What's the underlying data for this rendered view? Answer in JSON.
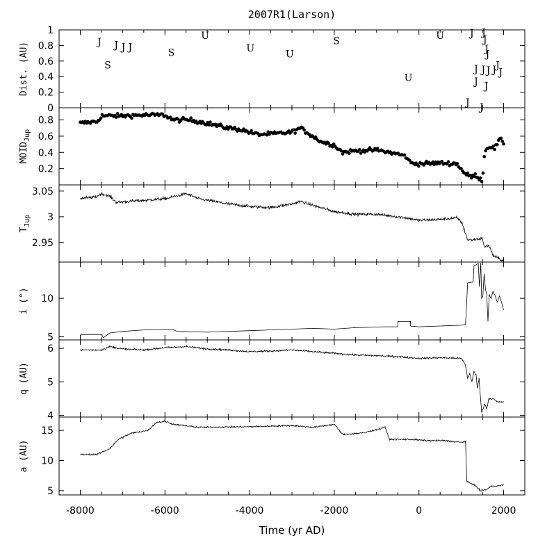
{
  "chart_data": {
    "type": "line",
    "title": "2007R1(Larson)",
    "xlabel": "Time (yr AD)",
    "xlim": [
      -8500,
      2500
    ],
    "x_ticks": [
      -8000,
      -6000,
      -4000,
      -2000,
      0,
      2000
    ],
    "x_tick_labels": [
      "-8000",
      "-6000",
      "-4000",
      "-2000",
      "0",
      "2000"
    ],
    "panels": [
      {
        "id": "dist",
        "type": "scatter-text",
        "ylabel": "Dist. (AU)",
        "ylim": [
          0,
          1
        ],
        "yticks": [
          0,
          0.2,
          0.4,
          0.6,
          0.8,
          1
        ],
        "ytick_labels": [
          "0",
          "0.2",
          "0.4",
          "0.6",
          "0.8",
          "1"
        ],
        "encounters": [
          {
            "x": -7550,
            "y": 0.85,
            "label": "J"
          },
          {
            "x": -7350,
            "y": 0.55,
            "label": "S"
          },
          {
            "x": -7150,
            "y": 0.81,
            "label": "J"
          },
          {
            "x": -6980,
            "y": 0.78,
            "label": "J"
          },
          {
            "x": -6820,
            "y": 0.78,
            "label": "J"
          },
          {
            "x": -5850,
            "y": 0.71,
            "label": "S"
          },
          {
            "x": -5050,
            "y": 0.93,
            "label": "U"
          },
          {
            "x": -3980,
            "y": 0.77,
            "label": "U"
          },
          {
            "x": -3050,
            "y": 0.69,
            "label": "U"
          },
          {
            "x": -1950,
            "y": 0.86,
            "label": "S"
          },
          {
            "x": -250,
            "y": 0.39,
            "label": "U"
          },
          {
            "x": 500,
            "y": 0.93,
            "label": "U"
          },
          {
            "x": 1250,
            "y": 0.96,
            "label": "J"
          },
          {
            "x": 1150,
            "y": 0.07,
            "label": "J"
          },
          {
            "x": 1350,
            "y": 0.5,
            "label": "J"
          },
          {
            "x": 1350,
            "y": 0.34,
            "label": "J"
          },
          {
            "x": 1520,
            "y": 0.49,
            "label": "J"
          },
          {
            "x": 1530,
            "y": 0.97,
            "label": "J"
          },
          {
            "x": 1560,
            "y": 0.88,
            "label": "J"
          },
          {
            "x": 1600,
            "y": 0.76,
            "label": "J"
          },
          {
            "x": 1620,
            "y": 0.69,
            "label": "J"
          },
          {
            "x": 1640,
            "y": 0.48,
            "label": "J"
          },
          {
            "x": 1590,
            "y": 0.28,
            "label": "J"
          },
          {
            "x": 1480,
            "y": 0.01,
            "label": "J"
          },
          {
            "x": 1780,
            "y": 0.49,
            "label": "J"
          },
          {
            "x": 1860,
            "y": 0.55,
            "label": "J"
          },
          {
            "x": 1930,
            "y": 0.46,
            "label": "J"
          }
        ]
      },
      {
        "id": "moid",
        "type": "scatter",
        "ylabel": "MOID",
        "ylabel_sub": "Jup",
        "ylim": [
          0,
          0.95
        ],
        "yticks": [
          0.2,
          0.4,
          0.6,
          0.8
        ],
        "ytick_labels": [
          "0.2",
          "0.4",
          "0.6",
          "0.8"
        ],
        "trend": [
          [
            -8000,
            0.76
          ],
          [
            -7600,
            0.78
          ],
          [
            -7500,
            0.85
          ],
          [
            -7000,
            0.85
          ],
          [
            -6500,
            0.86
          ],
          [
            -6000,
            0.86
          ],
          [
            -5800,
            0.8
          ],
          [
            -5400,
            0.8
          ],
          [
            -5000,
            0.76
          ],
          [
            -4600,
            0.71
          ],
          [
            -4200,
            0.68
          ],
          [
            -3800,
            0.62
          ],
          [
            -3400,
            0.63
          ],
          [
            -3000,
            0.65
          ],
          [
            -2800,
            0.7
          ],
          [
            -2600,
            0.63
          ],
          [
            -2300,
            0.53
          ],
          [
            -2000,
            0.49
          ],
          [
            -1800,
            0.4
          ],
          [
            -1500,
            0.42
          ],
          [
            -1000,
            0.43
          ],
          [
            -500,
            0.38
          ],
          [
            -300,
            0.35
          ],
          [
            -200,
            0.27
          ],
          [
            0,
            0.26
          ],
          [
            500,
            0.27
          ],
          [
            900,
            0.26
          ],
          [
            1100,
            0.13
          ],
          [
            1250,
            0.1
          ],
          [
            1350,
            0.12
          ],
          [
            1450,
            0.07
          ],
          [
            1500,
            0.06
          ],
          [
            1550,
            0.4
          ],
          [
            1650,
            0.48
          ],
          [
            1800,
            0.45
          ],
          [
            1900,
            0.56
          ],
          [
            2000,
            0.52
          ]
        ],
        "jitter": 0.025,
        "count": 330
      },
      {
        "id": "tjup",
        "type": "line",
        "ylabel": "T",
        "ylabel_sub": "Jup",
        "ylim": [
          2.912,
          3.062
        ],
        "yticks": [
          2.95,
          3.0,
          3.05
        ],
        "ytick_labels": [
          "2.95",
          "3",
          "3.05"
        ],
        "trend": [
          [
            -8000,
            3.036
          ],
          [
            -7650,
            3.038
          ],
          [
            -7500,
            3.045
          ],
          [
            -7300,
            3.04
          ],
          [
            -7150,
            3.028
          ],
          [
            -6500,
            3.032
          ],
          [
            -6000,
            3.035
          ],
          [
            -5500,
            3.045
          ],
          [
            -5200,
            3.035
          ],
          [
            -4500,
            3.025
          ],
          [
            -4000,
            3.02
          ],
          [
            -3500,
            3.018
          ],
          [
            -3000,
            3.025
          ],
          [
            -2800,
            3.03
          ],
          [
            -2500,
            3.022
          ],
          [
            -2000,
            3.01
          ],
          [
            -1500,
            3.005
          ],
          [
            -1000,
            3.005
          ],
          [
            -500,
            3.0
          ],
          [
            -300,
            2.998
          ],
          [
            0,
            2.993
          ],
          [
            500,
            2.995
          ],
          [
            900,
            2.998
          ],
          [
            1000,
            2.99
          ],
          [
            1050,
            2.98
          ],
          [
            1150,
            2.955
          ],
          [
            1250,
            2.955
          ],
          [
            1500,
            2.958
          ],
          [
            1550,
            2.94
          ],
          [
            1650,
            2.945
          ],
          [
            1750,
            2.925
          ],
          [
            1900,
            2.918
          ],
          [
            2000,
            2.915
          ]
        ],
        "noise": 0.003
      },
      {
        "id": "incl",
        "type": "line",
        "ylabel": "i (°)",
        "ylim": [
          4.6,
          14.7
        ],
        "yticks": [
          5,
          10
        ],
        "ytick_labels": [
          "5",
          "10"
        ],
        "points": [
          [
            -8000,
            5.3
          ],
          [
            -7500,
            5.3
          ],
          [
            -7450,
            4.9
          ],
          [
            -7300,
            5.5
          ],
          [
            -7000,
            5.7
          ],
          [
            -6500,
            5.9
          ],
          [
            -6000,
            5.95
          ],
          [
            -5800,
            5.9
          ],
          [
            -5700,
            5.7
          ],
          [
            -5000,
            5.6
          ],
          [
            -4000,
            5.8
          ],
          [
            -3000,
            6.0
          ],
          [
            -2500,
            6.1
          ],
          [
            -2000,
            6.0
          ],
          [
            -1500,
            6.2
          ],
          [
            -800,
            6.3
          ],
          [
            -500,
            6.3
          ],
          [
            -500,
            7.0
          ],
          [
            -200,
            7.0
          ],
          [
            -200,
            6.4
          ],
          [
            0,
            6.3
          ],
          [
            500,
            6.4
          ],
          [
            1000,
            6.5
          ],
          [
            1100,
            6.6
          ],
          [
            1150,
            12.0
          ],
          [
            1280,
            12.1
          ],
          [
            1300,
            14.2
          ],
          [
            1400,
            14.5
          ],
          [
            1430,
            11.5
          ],
          [
            1460,
            14.6
          ],
          [
            1480,
            10.0
          ],
          [
            1510,
            10.3
          ],
          [
            1540,
            13.2
          ],
          [
            1570,
            11.2
          ],
          [
            1600,
            10.5
          ],
          [
            1630,
            7.0
          ],
          [
            1660,
            10.5
          ],
          [
            1700,
            10.0
          ],
          [
            1750,
            10.9
          ],
          [
            1800,
            10.3
          ],
          [
            1850,
            9.5
          ],
          [
            1900,
            10.3
          ],
          [
            1950,
            9.5
          ],
          [
            2000,
            8.5
          ]
        ]
      },
      {
        "id": "q",
        "type": "line",
        "ylabel": "q (AU)",
        "ylim": [
          3.95,
          6.25
        ],
        "yticks": [
          4,
          5,
          6
        ],
        "ytick_labels": [
          "4",
          "5",
          "6"
        ],
        "trend": [
          [
            -8000,
            5.95
          ],
          [
            -7500,
            5.95
          ],
          [
            -7300,
            6.05
          ],
          [
            -7000,
            5.98
          ],
          [
            -6500,
            5.95
          ],
          [
            -6000,
            6.02
          ],
          [
            -5500,
            6.05
          ],
          [
            -5000,
            5.98
          ],
          [
            -4500,
            5.95
          ],
          [
            -4000,
            5.9
          ],
          [
            -3500,
            5.92
          ],
          [
            -3000,
            5.95
          ],
          [
            -2500,
            5.9
          ],
          [
            -2000,
            5.85
          ],
          [
            -1500,
            5.8
          ],
          [
            -1000,
            5.78
          ],
          [
            -500,
            5.75
          ],
          [
            0,
            5.7
          ],
          [
            500,
            5.72
          ],
          [
            1000,
            5.7
          ],
          [
            1100,
            5.5
          ],
          [
            1150,
            5.1
          ],
          [
            1200,
            5.25
          ],
          [
            1250,
            5.0
          ],
          [
            1300,
            5.3
          ],
          [
            1350,
            5.2
          ],
          [
            1380,
            4.8
          ],
          [
            1420,
            5.1
          ],
          [
            1480,
            4.1
          ],
          [
            1520,
            4.2
          ],
          [
            1550,
            4.35
          ],
          [
            1600,
            4.2
          ],
          [
            1650,
            4.5
          ],
          [
            1750,
            4.5
          ],
          [
            1850,
            4.4
          ],
          [
            2000,
            4.4
          ]
        ],
        "noise": 0.025
      },
      {
        "id": "a",
        "type": "line",
        "ylabel": "a (AU)",
        "ylim": [
          4.3,
          17.2
        ],
        "yticks": [
          5,
          10,
          15
        ],
        "ytick_labels": [
          "5",
          "10",
          "15"
        ],
        "trend": [
          [
            -8000,
            11.0
          ],
          [
            -7600,
            11.0
          ],
          [
            -7300,
            12.0
          ],
          [
            -7100,
            13.5
          ],
          [
            -6800,
            14.5
          ],
          [
            -6400,
            15.0
          ],
          [
            -6200,
            16.3
          ],
          [
            -6000,
            16.5
          ],
          [
            -5800,
            16.0
          ],
          [
            -5200,
            15.5
          ],
          [
            -4000,
            15.6
          ],
          [
            -3000,
            15.8
          ],
          [
            -2500,
            15.5
          ],
          [
            -2000,
            16.0
          ],
          [
            -1800,
            14.3
          ],
          [
            -1300,
            14.6
          ],
          [
            -900,
            15.3
          ],
          [
            -800,
            15.6
          ],
          [
            -700,
            13.5
          ],
          [
            -200,
            13.5
          ],
          [
            200,
            13.3
          ],
          [
            600,
            13.3
          ],
          [
            1000,
            13.0
          ],
          [
            1100,
            13.2
          ],
          [
            1130,
            6.5
          ],
          [
            1300,
            6.0
          ],
          [
            1450,
            5.0
          ],
          [
            1600,
            5.2
          ],
          [
            1700,
            5.7
          ],
          [
            1900,
            5.8
          ],
          [
            2000,
            6.0
          ]
        ],
        "noise": 0.12
      }
    ]
  }
}
